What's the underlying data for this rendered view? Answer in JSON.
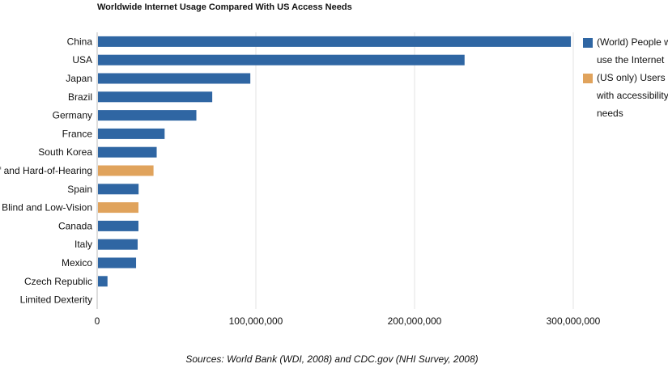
{
  "chart_data": {
    "type": "bar",
    "orientation": "horizontal",
    "title": "Worldwide Internet Usage Compared With US Access Needs",
    "source": "Sources: World Bank (WDI, 2008) and CDC.gov (NHI Survey, 2008)",
    "categories": [
      "China",
      "USA",
      "Japan",
      "Brazil",
      "Germany",
      "France",
      "South Korea",
      "Deaf and Hard-of-Hearing",
      "Spain",
      "Blind and Low-Vision",
      "Canada",
      "Italy",
      "Mexico",
      "Czech Republic",
      "Limited Dexterity"
    ],
    "values": [
      298000000,
      231000000,
      96000000,
      72000000,
      62000000,
      42000000,
      37000000,
      35000000,
      25600000,
      25500000,
      25500000,
      25000000,
      24000000,
      6000000,
      0
    ],
    "series_index": [
      0,
      0,
      0,
      0,
      0,
      0,
      0,
      1,
      0,
      1,
      0,
      0,
      0,
      0,
      1
    ],
    "series": [
      {
        "name_lines": [
          "(World) People who",
          "use the Internet"
        ],
        "color": "#2f66a3"
      },
      {
        "name_lines": [
          "(US only) Users",
          "with accessibility",
          "needs"
        ],
        "color": "#e0a35c"
      }
    ],
    "xlim": [
      0,
      350000000
    ],
    "xticks": [
      {
        "value": 0,
        "label": "0"
      },
      {
        "value": 100000000,
        "label": "100,000,000"
      },
      {
        "value": 200000000,
        "label": "200,000,000"
      },
      {
        "value": 300000000,
        "label": "300,000,000"
      }
    ],
    "grid": true,
    "legend_position": "right"
  }
}
